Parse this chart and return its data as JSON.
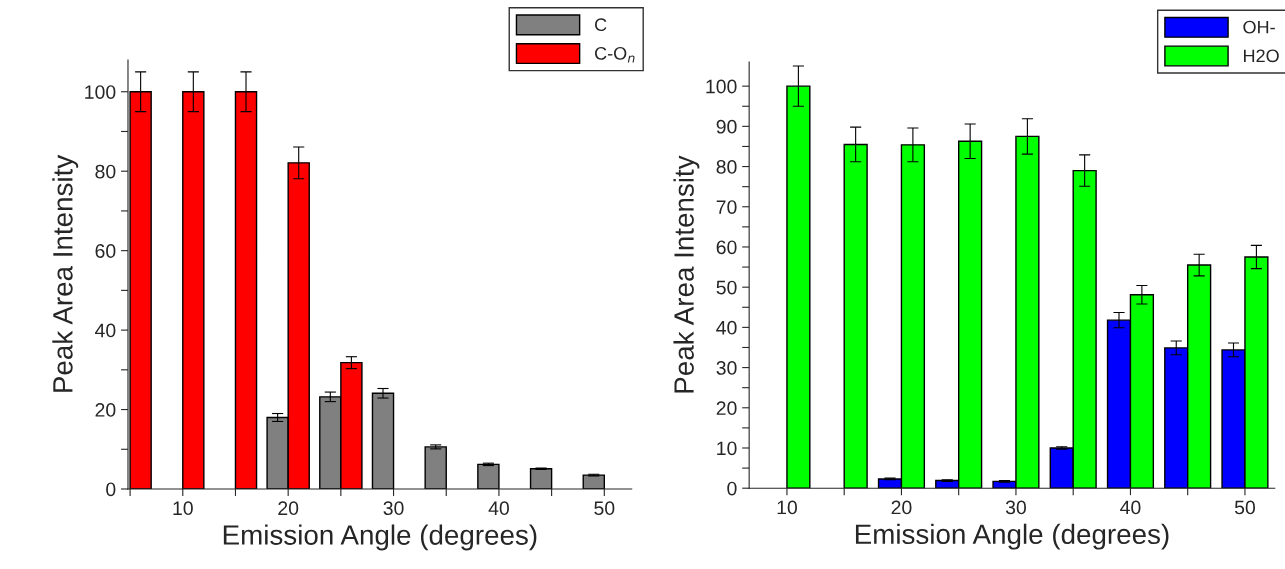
{
  "chart_data": [
    {
      "type": "bar",
      "xlabel": "Emission Angle (degrees)",
      "ylabel": "Peak Area Intensity",
      "legend": "top right",
      "xlim": [
        4.8,
        52.6
      ],
      "ylim": [
        0,
        108
      ],
      "xticks": [
        {
          "value": 5,
          "label": null
        },
        10,
        {
          "value": 15,
          "label": null
        },
        20,
        {
          "value": 25,
          "label": null
        },
        30,
        {
          "value": 35,
          "label": null
        },
        40,
        {
          "value": 45,
          "label": null
        },
        50
      ],
      "yticks": [
        0,
        {
          "value": 10,
          "label": null
        },
        20,
        {
          "value": 30,
          "label": null
        },
        40,
        {
          "value": 50,
          "label": null
        },
        60,
        {
          "value": 70,
          "label": null
        },
        80,
        {
          "value": 90,
          "label": null
        },
        100
      ],
      "series": [
        {
          "name": "C",
          "color": "#808080",
          "x": [
            20,
            25,
            30,
            35,
            40,
            45,
            50
          ],
          "values": [
            18.0,
            23.2,
            24.1,
            10.6,
            6.2,
            5.1,
            3.5
          ],
          "errors": [
            1,
            1.2,
            1.2,
            0.5,
            0.3,
            0.2,
            0.2
          ]
        },
        {
          "name": "C-O$_{n}$",
          "color": "#ff0000",
          "x": [
            5,
            10,
            15,
            20,
            25
          ],
          "values": [
            100,
            100,
            100,
            82.1,
            31.8
          ],
          "errors": [
            5,
            5,
            5,
            4,
            1.5
          ]
        }
      ]
    },
    {
      "type": "bar",
      "xlabel": "Emission Angle (degrees)",
      "ylabel": "Peak Area Intensity",
      "legend": "top right",
      "xlim": [
        6.7,
        52.6
      ],
      "ylim": [
        0,
        106
      ],
      "xticks": [
        10,
        {
          "value": 15,
          "label": null
        },
        20,
        {
          "value": 25,
          "label": null
        },
        30,
        {
          "value": 35,
          "label": null
        },
        40,
        {
          "value": 45,
          "label": null
        },
        50
      ],
      "yticks": [
        0,
        {
          "value": 5,
          "label": null
        },
        10,
        {
          "value": 15,
          "label": null
        },
        20,
        {
          "value": 25,
          "label": null
        },
        30,
        {
          "value": 35,
          "label": null
        },
        40,
        {
          "value": 45,
          "label": null
        },
        50,
        {
          "value": 55,
          "label": null
        },
        60,
        {
          "value": 65,
          "label": null
        },
        70,
        {
          "value": 75,
          "label": null
        },
        80,
        {
          "value": 85,
          "label": null
        },
        90,
        {
          "value": 95,
          "label": null
        },
        100
      ],
      "series": [
        {
          "name": "OH-",
          "color": "#0000ff",
          "x": [
            20,
            25,
            30,
            35,
            40,
            45,
            50
          ],
          "values": [
            2.3,
            1.9,
            1.7,
            10.0,
            41.8,
            34.9,
            34.4
          ],
          "errors": [
            0.2,
            0.2,
            0.2,
            0.3,
            1.9,
            1.7,
            1.7
          ]
        },
        {
          "name": "H2O",
          "color": "#00ff00",
          "x": [
            10,
            15,
            20,
            25,
            30,
            35,
            40,
            45,
            50
          ],
          "values": [
            100,
            85.5,
            85.4,
            86.3,
            87.5,
            79.0,
            48.1,
            55.5,
            57.5
          ],
          "errors": [
            5,
            4.3,
            4.2,
            4.3,
            4.4,
            3.9,
            2.3,
            2.7,
            2.9
          ]
        }
      ]
    }
  ]
}
